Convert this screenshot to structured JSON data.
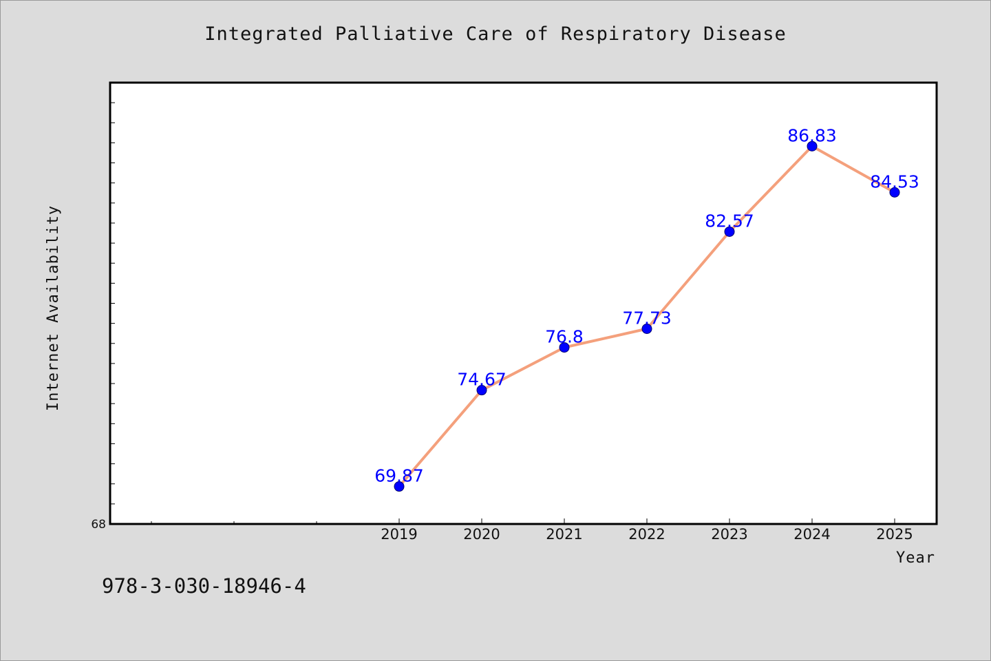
{
  "title": "Integrated Palliative Care of Respiratory Disease",
  "footer_text": "978-3-030-18946-4",
  "chart_data": {
    "type": "line",
    "title": "Integrated Palliative Care of Respiratory Disease",
    "xlabel": "Year",
    "ylabel": "Internet Availability",
    "x": [
      "2019",
      "2020",
      "2021",
      "2022",
      "2023",
      "2024",
      "2025"
    ],
    "x_extra_minor_ticks": 3,
    "series": [
      {
        "values": [
          69.87,
          74.67,
          76.8,
          77.73,
          82.57,
          86.83,
          84.53
        ]
      }
    ],
    "data_labels": [
      "69.87",
      "74.67",
      "76.8",
      "77.73",
      "82.57",
      "86.83",
      "84.53"
    ],
    "y_tick_labels": [
      "68"
    ],
    "ylim": [
      68,
      90
    ],
    "y_minor_step": 1,
    "grid": false,
    "colors": {
      "line": "#f4a07c",
      "marker": "#0000ff",
      "label": "#0000ff"
    }
  }
}
